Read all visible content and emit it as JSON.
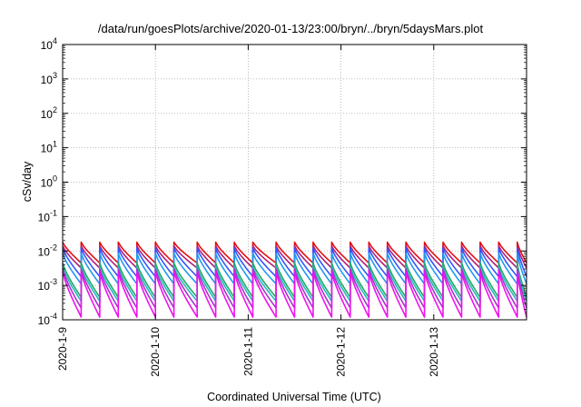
{
  "chart_data": {
    "type": "line",
    "title": "/data/run/goesPlots/archive/2020-01-13/23:00/bryn/../bryn/5daysMars.plot",
    "xlabel": "Coordinated Universal Time (UTC)",
    "ylabel": "cSv/day",
    "y_scale": "log",
    "ylim": [
      0.0001,
      10000
    ],
    "xlim": [
      "2020-01-09",
      "2020-01-14"
    ],
    "grid": true,
    "legend": "none",
    "x_tick_labels": [
      "2020-1-9",
      "2020-1-10",
      "2020-1-11",
      "2020-1-12",
      "2020-1-13"
    ],
    "y_ticks": [
      {
        "value": 0.0001,
        "base": "10",
        "exp": "-4"
      },
      {
        "value": 0.001,
        "base": "10",
        "exp": "-3"
      },
      {
        "value": 0.01,
        "base": "10",
        "exp": "-2"
      },
      {
        "value": 0.1,
        "base": "10",
        "exp": "-1"
      },
      {
        "value": 1,
        "base": "10",
        "exp": "0"
      },
      {
        "value": 10,
        "base": "10",
        "exp": "1"
      },
      {
        "value": 100,
        "base": "10",
        "exp": "2"
      },
      {
        "value": 1000,
        "base": "10",
        "exp": "3"
      },
      {
        "value": 10000,
        "base": "10",
        "exp": "4"
      }
    ],
    "sawtooth_peak_days": [
      0.0,
      0.2,
      0.4,
      0.6,
      0.8,
      1.0,
      1.2,
      1.45,
      1.65,
      1.85,
      2.05,
      2.3,
      2.5,
      2.7,
      2.9,
      3.1,
      3.3,
      3.5,
      3.7,
      3.9,
      4.1,
      4.3,
      4.5,
      4.7,
      4.9
    ],
    "series": [
      {
        "color": "#e01010",
        "peak": 0.018,
        "trough": 0.0045
      },
      {
        "color": "#b0207a",
        "peak": 0.014,
        "trough": 0.0032
      },
      {
        "color": "#3355ff",
        "peak": 0.012,
        "trough": 0.0018
      },
      {
        "color": "#2299ee",
        "peak": 0.0085,
        "trough": 0.0011
      },
      {
        "color": "#22aa66",
        "peak": 0.0045,
        "trough": 0.00045
      },
      {
        "color": "#22bbbb",
        "peak": 0.0035,
        "trough": 0.00035
      },
      {
        "color": "#aa33cc",
        "peak": 0.003,
        "trough": 0.00022
      },
      {
        "color": "#ee11ee",
        "peak": 0.0025,
        "trough": 0.00012
      }
    ]
  }
}
